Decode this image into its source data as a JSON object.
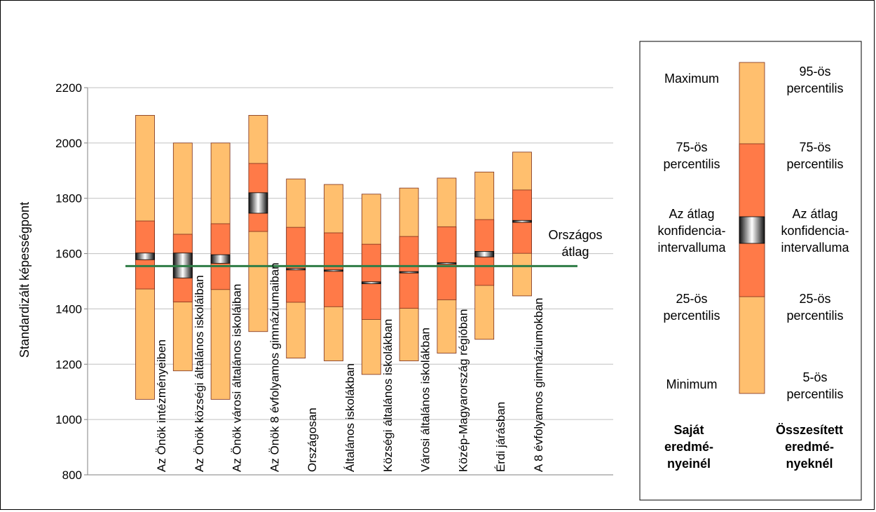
{
  "chart_data": {
    "type": "box-range",
    "ylabel": "Standardizált képességpont",
    "ylim": [
      800,
      2200
    ],
    "yticks": [
      800,
      1000,
      1200,
      1400,
      1600,
      1800,
      2000,
      2200
    ],
    "reference_line": {
      "label_line1": "Országos",
      "label_line2": "átlag",
      "value": 1555,
      "color": "#2e7d46"
    },
    "categories": [
      "Az Önök intézményeiben",
      "Az Önök községi általános iskoláiban",
      "Az Önök városi általános iskoláiban",
      "Az Önök 8 évfolyamos gimnáziumaiban",
      "Országosan",
      "Általános iskolákban",
      "Községi általános iskolákban",
      "Városi általános iskolákban",
      "Közép-Magyarország régióban",
      "Érdi járásban",
      "A 8 évfolyamos gimnáziumokban"
    ],
    "series": [
      {
        "name": "Az Önök intézményeiben",
        "low": 1073,
        "q1": 1472,
        "ci_low": 1578,
        "ci_high": 1602,
        "q3": 1718,
        "high": 2100
      },
      {
        "name": "Az Önök községi általános iskoláiban",
        "low": 1176,
        "q1": 1425,
        "ci_low": 1512,
        "ci_high": 1602,
        "q3": 1670,
        "high": 2000
      },
      {
        "name": "Az Önök városi általános iskoláiban",
        "low": 1073,
        "q1": 1470,
        "ci_low": 1565,
        "ci_high": 1596,
        "q3": 1708,
        "high": 2000
      },
      {
        "name": "Az Önök 8 évfolyamos gimnáziumaiban",
        "low": 1318,
        "q1": 1680,
        "ci_low": 1746,
        "ci_high": 1820,
        "q3": 1926,
        "high": 2100
      },
      {
        "name": "Országosan",
        "low": 1222,
        "q1": 1424,
        "ci_low": 1542,
        "ci_high": 1546,
        "q3": 1695,
        "high": 1870
      },
      {
        "name": "Általános iskolákban",
        "low": 1212,
        "q1": 1408,
        "ci_low": 1536,
        "ci_high": 1541,
        "q3": 1675,
        "high": 1850
      },
      {
        "name": "Községi általános iskolákban",
        "low": 1163,
        "q1": 1362,
        "ci_low": 1491,
        "ci_high": 1498,
        "q3": 1634,
        "high": 1815
      },
      {
        "name": "Városi általános iskolákban",
        "low": 1212,
        "q1": 1402,
        "ci_low": 1530,
        "ci_high": 1535,
        "q3": 1662,
        "high": 1837
      },
      {
        "name": "Közép-Magyarország régióban",
        "low": 1240,
        "q1": 1433,
        "ci_low": 1562,
        "ci_high": 1567,
        "q3": 1697,
        "high": 1873
      },
      {
        "name": "Érdi járásban",
        "low": 1290,
        "q1": 1485,
        "ci_low": 1588,
        "ci_high": 1608,
        "q3": 1723,
        "high": 1895
      },
      {
        "name": "A 8 évfolyamos gimnáziumokban",
        "low": 1447,
        "q1": 1601,
        "ci_low": 1713,
        "ci_high": 1720,
        "q3": 1830,
        "high": 1967
      }
    ],
    "colors": {
      "outer": "#ffbf6e",
      "inner": "#ff7a48",
      "edge": "#7a2e1a"
    }
  },
  "legend": {
    "left_labels": [
      "Maximum",
      "75-ös|percentilis",
      "Az átlag|konfidencia-|intervalluma",
      "25-ös|percentilis",
      "Minimum"
    ],
    "right_labels": [
      "95-ös|percentilis",
      "75-ös|percentilis",
      "Az átlag|konfidencia-|intervalluma",
      "25-ös|percentilis",
      "5-ös|percentilis"
    ],
    "left_title": "Saját|eredmé-|nyeinél",
    "right_title": "Összesített|eredmé-|nyeknél"
  }
}
